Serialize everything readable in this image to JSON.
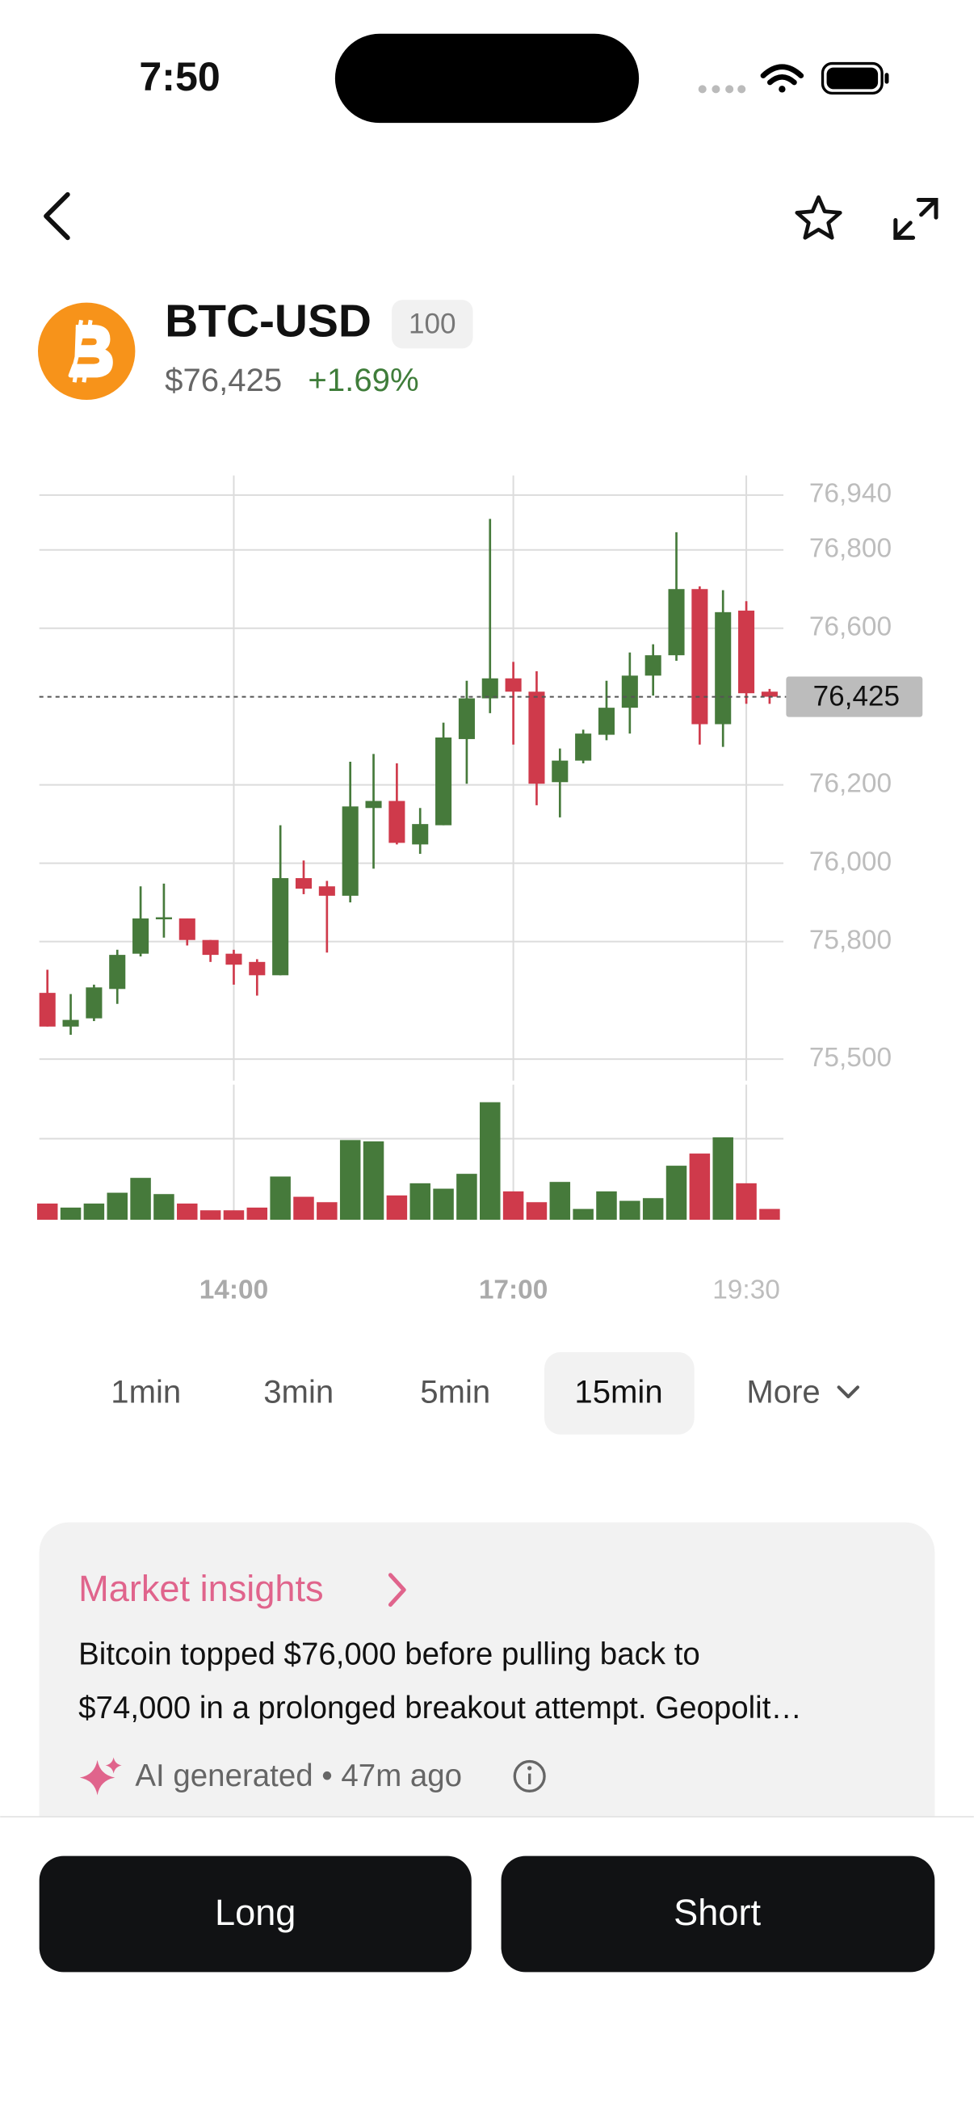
{
  "status_bar": {
    "time": "7:50"
  },
  "header": {
    "symbol": "BTC-USD",
    "badge": "100",
    "price": "$76,425",
    "change": "+1.69%"
  },
  "chart_data": {
    "type": "candlestick",
    "up_color": "#467a3b",
    "down_color": "#cf3a4b",
    "categories": [
      null,
      null,
      null,
      null,
      null,
      null,
      null,
      null,
      "14:00",
      null,
      null,
      null,
      null,
      null,
      null,
      null,
      null,
      null,
      null,
      null,
      "17:00",
      null,
      null,
      null,
      null,
      null,
      null,
      null,
      null,
      null,
      "19:30",
      null
    ],
    "open": [
      75669,
      75583,
      75604,
      75679,
      75769,
      75859,
      75859,
      75804,
      75769,
      75748,
      75714,
      75962,
      75941,
      75917,
      76141,
      76159,
      76048,
      76097,
      76317,
      76421,
      76472,
      76438,
      76207,
      76262,
      76328,
      76397,
      76479,
      76531,
      76700,
      76355,
      76645,
      76438
    ],
    "high": [
      75728,
      75666,
      75690,
      75779,
      75941,
      75948,
      75859,
      75804,
      75779,
      75755,
      76097,
      76007,
      75955,
      76259,
      76279,
      76255,
      76141,
      76359,
      76466,
      76879,
      76514,
      76490,
      76293,
      76341,
      76466,
      76538,
      76559,
      76845,
      76707,
      76697,
      76669,
      76445
    ],
    "low": [
      75583,
      75562,
      75597,
      75641,
      75762,
      75810,
      75790,
      75748,
      75690,
      75662,
      75714,
      75921,
      75772,
      75900,
      75986,
      76048,
      76024,
      76097,
      76203,
      76383,
      76303,
      76148,
      76117,
      76255,
      76314,
      76331,
      76428,
      76517,
      76303,
      76297,
      76407,
      76407
    ],
    "close": [
      75583,
      75600,
      75683,
      75766,
      75859,
      75862,
      75804,
      75766,
      75741,
      75714,
      75962,
      75935,
      75917,
      76145,
      76159,
      76052,
      76100,
      76321,
      76421,
      76472,
      76438,
      76203,
      76262,
      76331,
      76397,
      76479,
      76531,
      76700,
      76355,
      76641,
      76434,
      76425
    ],
    "volume": [
      12,
      9,
      12,
      20,
      31,
      19,
      12,
      7,
      7,
      9,
      32,
      17,
      13,
      59,
      58,
      18,
      27,
      23,
      34,
      87,
      21,
      13,
      28,
      8,
      21,
      14,
      16,
      40,
      49,
      61,
      27,
      8
    ],
    "volume_lim": [
      0,
      100
    ],
    "ylim": [
      75445,
      76990
    ],
    "yticks": [
      {
        "value": 75500,
        "label": "75,500"
      },
      {
        "value": 75800,
        "label": "75,800"
      },
      {
        "value": 76000,
        "label": "76,000"
      },
      {
        "value": 76200,
        "label": "76,200"
      },
      {
        "value": 76600,
        "label": "76,600"
      },
      {
        "value": 76800,
        "label": "76,800"
      },
      {
        "value": 76940,
        "label": "76,940"
      }
    ],
    "grid": true,
    "last_price": {
      "value": 76425,
      "label": "76,425"
    }
  },
  "timeframes": [
    "1min",
    "3min",
    "5min",
    "15min",
    "More"
  ],
  "selected_timeframe": 3,
  "insights": {
    "title": "Market insights",
    "lines": [
      "Bitcoin topped $76,000 before pulling back to",
      "$74,000 in a prolonged breakout attempt. Geopolit…"
    ],
    "footer": "AI generated • 47m ago"
  },
  "actions": [
    "Long",
    "Short"
  ]
}
